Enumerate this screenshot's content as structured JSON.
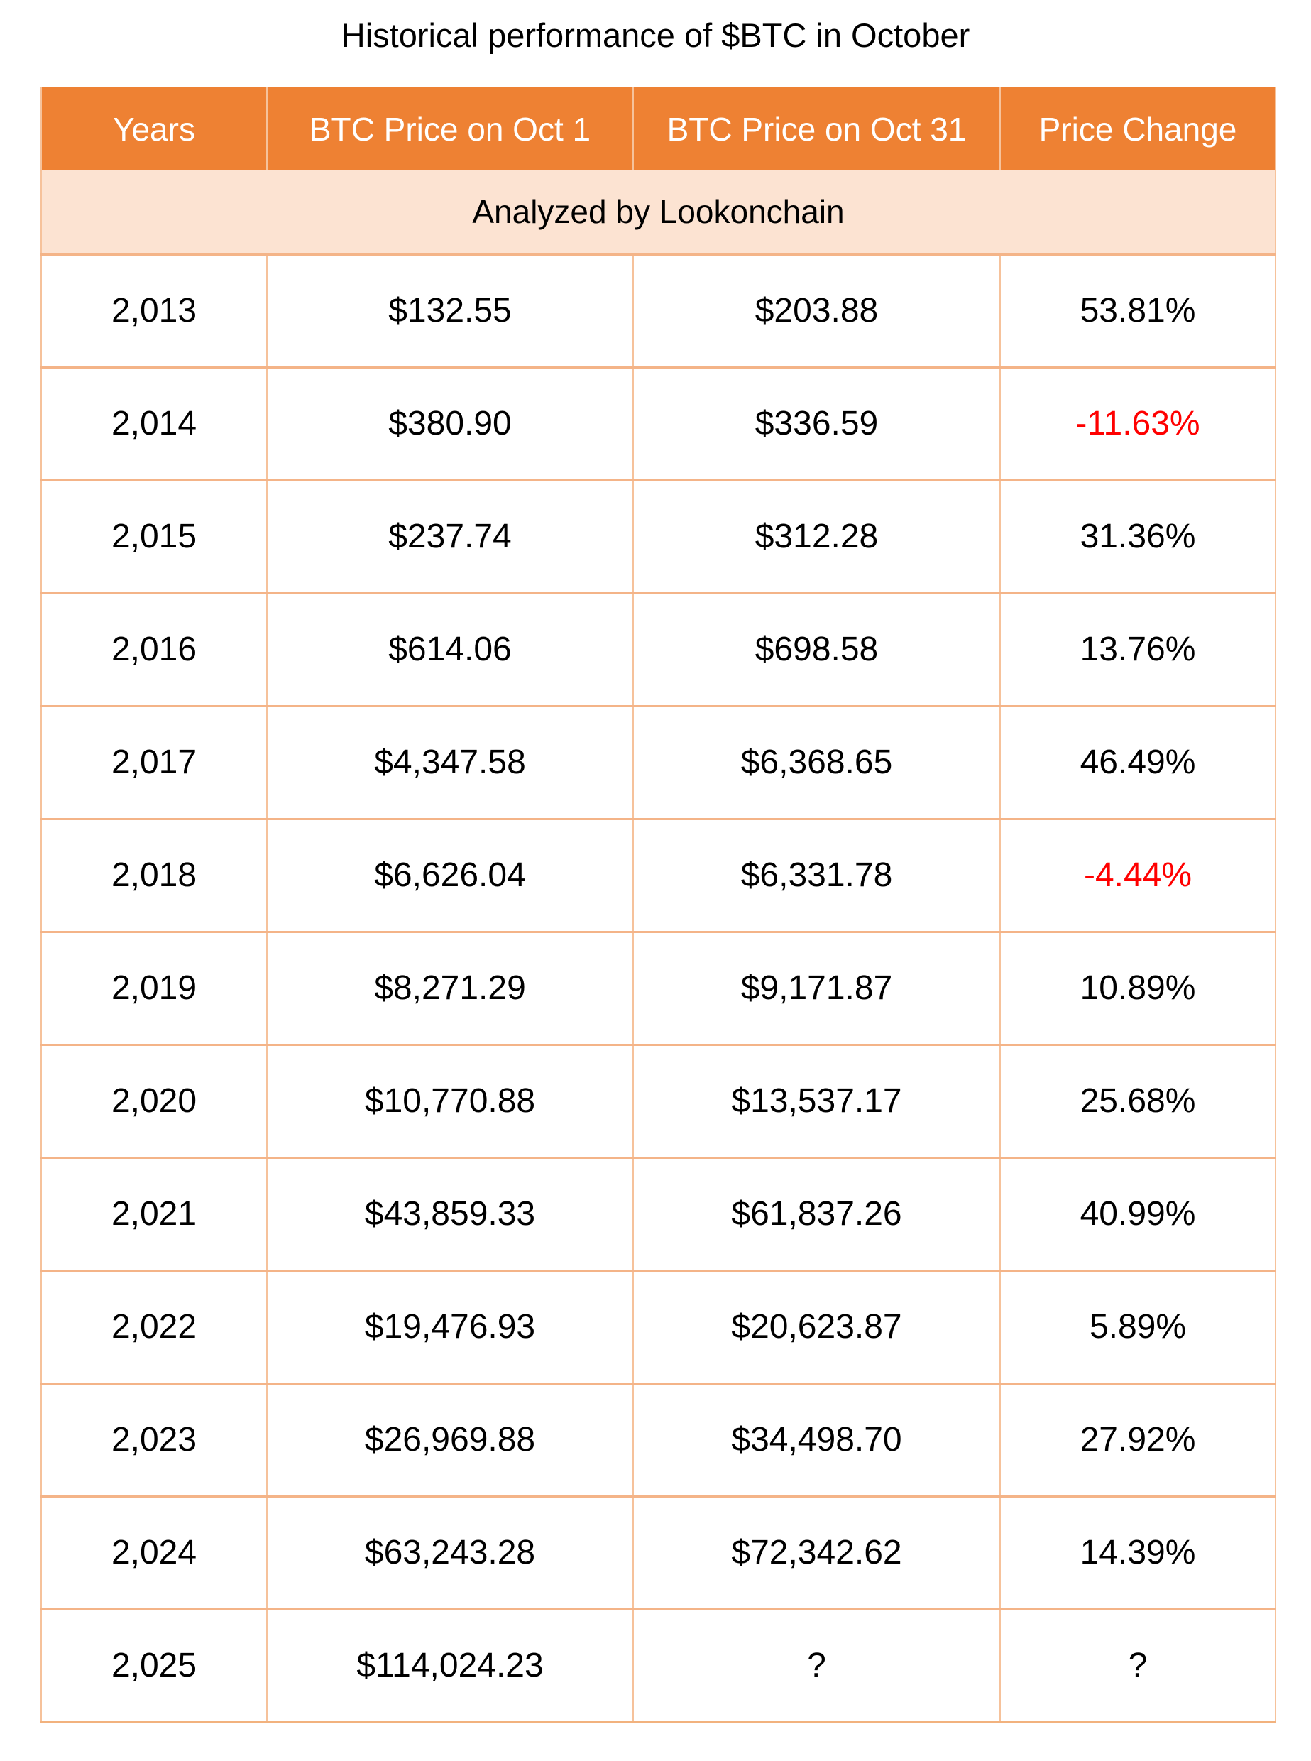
{
  "title": "Historical performance of $BTC in October",
  "colors": {
    "header_bg": "#EE8133",
    "header_text": "#FFFFFF",
    "note_row_bg": "#FCE3D2",
    "grid_line": "#F4B488",
    "negative_value": "#FF0000",
    "body_text": "#000000"
  },
  "chart_data": {
    "type": "table",
    "title": "Historical performance of $BTC in October",
    "note": "Analyzed by Lookonchain",
    "columns": [
      "Years",
      "BTC Price on Oct 1",
      "BTC Price on Oct 31",
      "Price Change"
    ],
    "rows": [
      {
        "year": "2,013",
        "oct1": "$132.55",
        "oct31": "$203.88",
        "change": "53.81%",
        "negative": false
      },
      {
        "year": "2,014",
        "oct1": "$380.90",
        "oct31": "$336.59",
        "change": "-11.63%",
        "negative": true
      },
      {
        "year": "2,015",
        "oct1": "$237.74",
        "oct31": "$312.28",
        "change": "31.36%",
        "negative": false
      },
      {
        "year": "2,016",
        "oct1": "$614.06",
        "oct31": "$698.58",
        "change": "13.76%",
        "negative": false
      },
      {
        "year": "2,017",
        "oct1": "$4,347.58",
        "oct31": "$6,368.65",
        "change": "46.49%",
        "negative": false
      },
      {
        "year": "2,018",
        "oct1": "$6,626.04",
        "oct31": "$6,331.78",
        "change": "-4.44%",
        "negative": true
      },
      {
        "year": "2,019",
        "oct1": "$8,271.29",
        "oct31": "$9,171.87",
        "change": "10.89%",
        "negative": false
      },
      {
        "year": "2,020",
        "oct1": "$10,770.88",
        "oct31": "$13,537.17",
        "change": "25.68%",
        "negative": false
      },
      {
        "year": "2,021",
        "oct1": "$43,859.33",
        "oct31": "$61,837.26",
        "change": "40.99%",
        "negative": false
      },
      {
        "year": "2,022",
        "oct1": "$19,476.93",
        "oct31": "$20,623.87",
        "change": "5.89%",
        "negative": false
      },
      {
        "year": "2,023",
        "oct1": "$26,969.88",
        "oct31": "$34,498.70",
        "change": "27.92%",
        "negative": false
      },
      {
        "year": "2,024",
        "oct1": "$63,243.28",
        "oct31": "$72,342.62",
        "change": "14.39%",
        "negative": false
      },
      {
        "year": "2,025",
        "oct1": "$114,024.23",
        "oct31": "?",
        "change": "?",
        "negative": false
      }
    ]
  }
}
